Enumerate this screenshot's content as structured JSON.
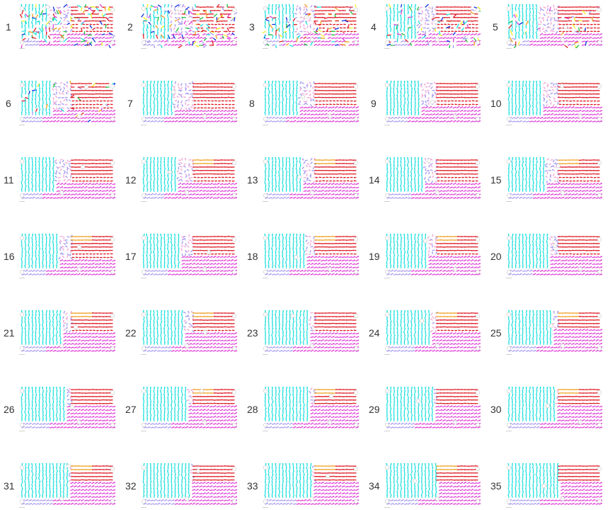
{
  "panels": [
    {
      "label": "1"
    },
    {
      "label": "2"
    },
    {
      "label": "3"
    },
    {
      "label": "4"
    },
    {
      "label": "5"
    },
    {
      "label": "6"
    },
    {
      "label": "7"
    },
    {
      "label": "8"
    },
    {
      "label": "9"
    },
    {
      "label": "10"
    },
    {
      "label": "11"
    },
    {
      "label": "12"
    },
    {
      "label": "13"
    },
    {
      "label": "14"
    },
    {
      "label": "15"
    },
    {
      "label": "16"
    },
    {
      "label": "17"
    },
    {
      "label": "18"
    },
    {
      "label": "19"
    },
    {
      "label": "20"
    },
    {
      "label": "21"
    },
    {
      "label": "22"
    },
    {
      "label": "23"
    },
    {
      "label": "24"
    },
    {
      "label": "25"
    },
    {
      "label": "26"
    },
    {
      "label": "27"
    },
    {
      "label": "28"
    },
    {
      "label": "29"
    },
    {
      "label": "30"
    },
    {
      "label": "31"
    },
    {
      "label": "32"
    },
    {
      "label": "33"
    },
    {
      "label": "34"
    },
    {
      "label": "35"
    }
  ],
  "colors": {
    "cyan": "#22e0e0",
    "magenta": "#e040d8",
    "red": "#e0202a",
    "orange": "#f0a020",
    "lavender": "#a89cf0",
    "pink": "#f0a8d8"
  }
}
